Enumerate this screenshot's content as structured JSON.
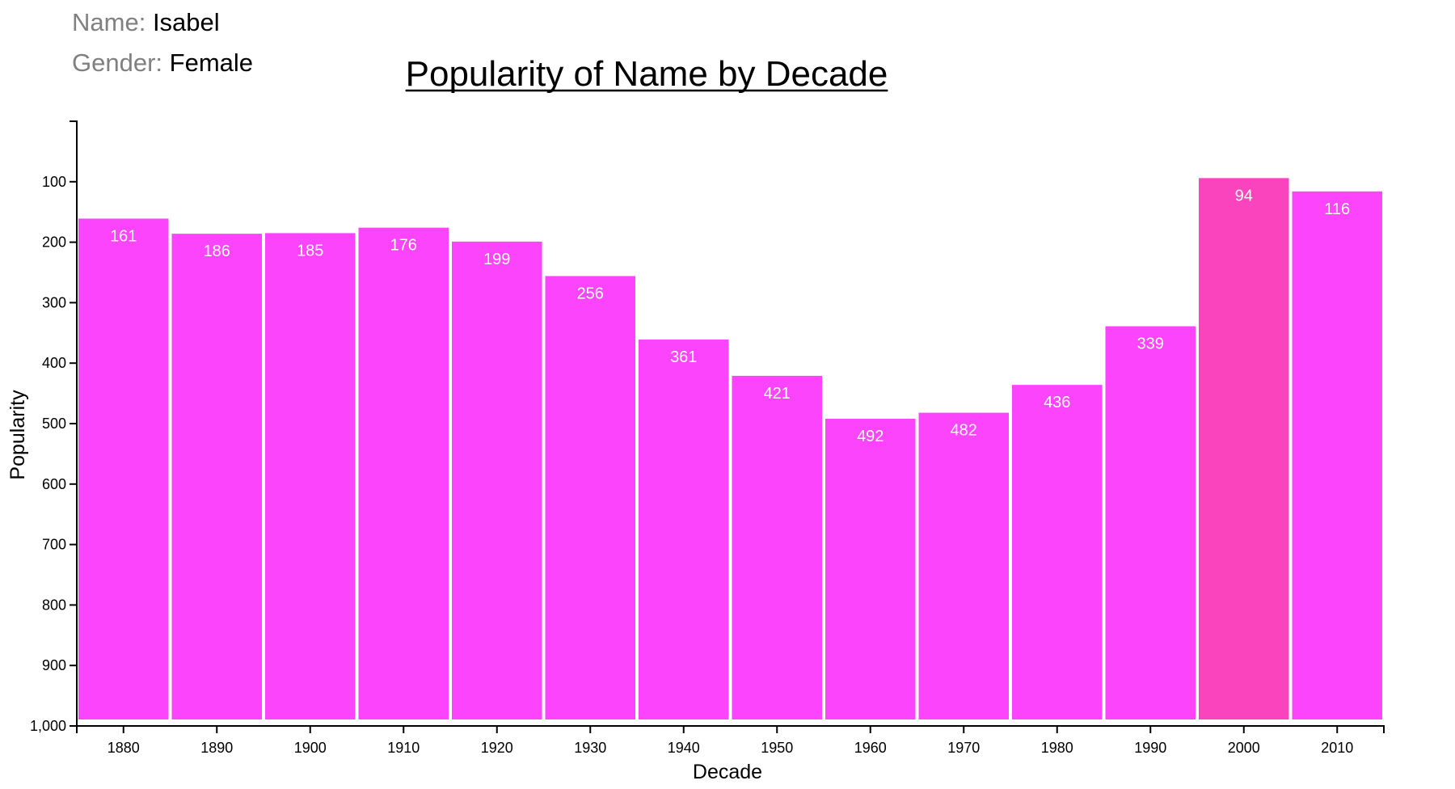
{
  "header": {
    "name_label": "Name:",
    "name_value": "Isabel",
    "gender_label": "Gender:",
    "gender_value": "Female"
  },
  "colors": {
    "bar": "#fb44fb",
    "bar_highlight": "#f944be",
    "label": "#ffffff",
    "axis": "#000000"
  },
  "chart_data": {
    "type": "bar",
    "title": "Popularity of Name by Decade",
    "xlabel": "Decade",
    "ylabel": "Popularity",
    "categories": [
      "1880",
      "1890",
      "1900",
      "1910",
      "1920",
      "1930",
      "1940",
      "1950",
      "1960",
      "1970",
      "1980",
      "1990",
      "2000",
      "2010"
    ],
    "values": [
      161,
      186,
      185,
      176,
      199,
      256,
      361,
      421,
      492,
      482,
      436,
      339,
      94,
      116
    ],
    "highlight_category": "2000",
    "ylim": [
      1000,
      0
    ],
    "yticks": [
      100,
      200,
      300,
      400,
      500,
      600,
      700,
      800,
      900,
      1000
    ],
    "ytick_labels": [
      "100",
      "200",
      "300",
      "400",
      "500",
      "600",
      "700",
      "800",
      "900",
      "1,000"
    ],
    "y_inverted": true,
    "grid": false,
    "legend": "none"
  }
}
